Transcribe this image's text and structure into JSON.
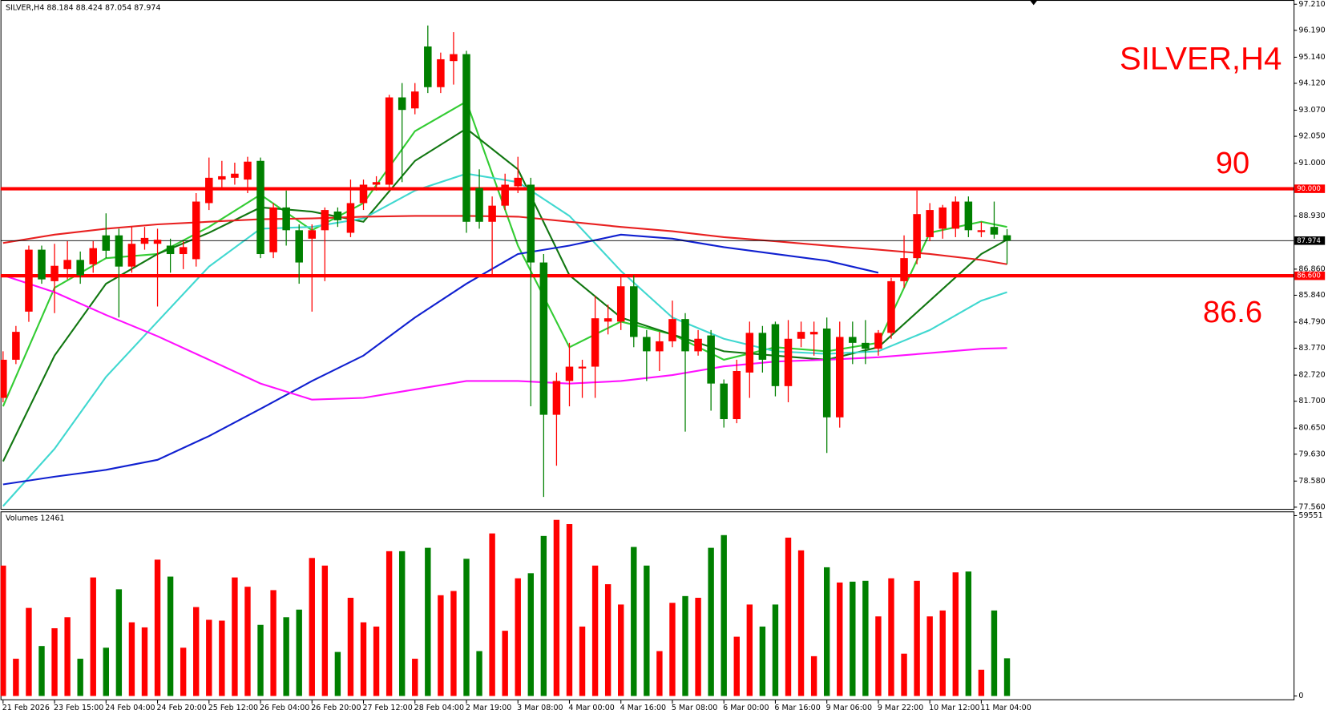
{
  "chart_data": [
    {
      "type": "candlestick",
      "symbol": "SILVER,H4",
      "watermark": "SILVER,H4",
      "up_color": "#ff0000",
      "down_color": "#008000",
      "categories": [
        "21 Feb 2026",
        null,
        null,
        null,
        "23 Feb 15:00",
        null,
        null,
        null,
        "24 Feb 04:00",
        null,
        null,
        null,
        "24 Feb 20:00",
        null,
        null,
        null,
        "25 Feb 12:00",
        null,
        null,
        null,
        "26 Feb 04:00",
        null,
        null,
        null,
        "26 Feb 20:00",
        null,
        null,
        null,
        "27 Feb 12:00",
        null,
        null,
        null,
        "28 Feb 04:00",
        null,
        null,
        null,
        "2 Mar 19:00",
        null,
        null,
        null,
        "3 Mar 08:00",
        null,
        null,
        null,
        "4 Mar 00:00",
        null,
        null,
        null,
        "4 Mar 16:00",
        null,
        null,
        null,
        "5 Mar 08:00",
        null,
        null,
        null,
        "6 Mar 00:00",
        null,
        null,
        null,
        "6 Mar 16:00",
        null,
        null,
        null,
        "9 Mar 06:00",
        null,
        null,
        null,
        "9 Mar 22:00",
        null,
        null,
        null,
        "10 Mar 12:00",
        null,
        null,
        null,
        "11 Mar 04:00",
        null,
        null
      ],
      "open": [
        81.83,
        83.32,
        85.2,
        87.62,
        86.39,
        86.86,
        87.22,
        87.05,
        88.18,
        88.18,
        86.96,
        87.85,
        87.85,
        87.78,
        87.45,
        87.25,
        89.44,
        90.36,
        90.43,
        90.36,
        91.09,
        87.52,
        89.27,
        88.38,
        88.05,
        88.38,
        89.11,
        88.28,
        89.44,
        90.16,
        90.16,
        93.57,
        93.14,
        95.56,
        93.97,
        94.99,
        95.26,
        90.03,
        88.71,
        89.34,
        90.1,
        90.16,
        87.12,
        81.17,
        82.49,
        82.98,
        83.05,
        84.81,
        84.81,
        86.19,
        84.21,
        83.65,
        84.04,
        84.91,
        83.65,
        84.27,
        82.39,
        81.0,
        82.82,
        84.37,
        84.71,
        82.29,
        84.14,
        84.31,
        84.54,
        81.07,
        84.21,
        83.98,
        83.75,
        84.37,
        86.39,
        87.29,
        88.11,
        88.44,
        88.44,
        89.5,
        88.31,
        88.51,
        88.184
      ],
      "high": [
        83.65,
        84.64,
        87.78,
        87.78,
        87.85,
        87.95,
        87.55,
        87.95,
        89.04,
        88.44,
        88.51,
        88.51,
        88.44,
        88.05,
        87.95,
        89.83,
        91.22,
        91.09,
        91.02,
        91.25,
        91.22,
        89.44,
        89.93,
        88.61,
        88.61,
        89.27,
        89.27,
        90.36,
        90.36,
        90.49,
        93.67,
        94.13,
        94.13,
        96.38,
        95.32,
        96.12,
        95.39,
        90.76,
        89.7,
        90.59,
        91.25,
        90.43,
        87.45,
        82.82,
        83.98,
        83.32,
        85.8,
        85.47,
        86.62,
        86.62,
        84.48,
        84.41,
        85.63,
        85.14,
        84.48,
        84.48,
        82.55,
        83.32,
        84.81,
        84.64,
        84.81,
        84.87,
        84.81,
        84.81,
        84.97,
        84.81,
        84.81,
        84.87,
        84.48,
        86.52,
        88.18,
        89.93,
        89.44,
        89.37,
        89.7,
        89.7,
        88.71,
        89.5,
        88.424
      ],
      "low": [
        81.66,
        83.15,
        84.8,
        86.29,
        85.14,
        86.46,
        86.29,
        86.72,
        87.29,
        84.97,
        86.72,
        87.62,
        85.4,
        86.72,
        86.86,
        86.96,
        89.17,
        90.03,
        90.16,
        89.83,
        87.29,
        87.29,
        87.78,
        86.29,
        85.2,
        86.39,
        88.51,
        88.11,
        89.17,
        89.93,
        89.93,
        90.26,
        92.91,
        93.74,
        93.74,
        94.07,
        88.28,
        88.44,
        86.62,
        89.17,
        89.83,
        81.5,
        77.96,
        79.18,
        81.5,
        81.83,
        81.83,
        84.31,
        84.48,
        83.81,
        82.49,
        82.88,
        83.81,
        80.51,
        83.48,
        81.33,
        80.67,
        80.84,
        81.83,
        82.82,
        81.89,
        81.66,
        83.81,
        83.48,
        79.68,
        80.67,
        83.15,
        83.15,
        83.48,
        84.14,
        86.13,
        87.05,
        87.95,
        88.05,
        88.11,
        88.11,
        88.11,
        88.05,
        87.054
      ],
      "close": [
        83.32,
        84.41,
        87.62,
        86.46,
        86.99,
        87.22,
        86.62,
        87.68,
        87.58,
        86.96,
        87.85,
        88.08,
        88.01,
        87.45,
        87.72,
        89.5,
        90.43,
        90.49,
        90.59,
        91.06,
        87.45,
        89.27,
        88.38,
        87.12,
        88.38,
        89.17,
        88.77,
        89.44,
        90.16,
        90.26,
        93.57,
        93.08,
        93.8,
        93.97,
        95.06,
        95.26,
        88.71,
        88.71,
        89.34,
        90.16,
        90.43,
        87.12,
        81.17,
        82.49,
        83.05,
        83.05,
        84.94,
        84.94,
        86.19,
        84.21,
        83.65,
        84.04,
        84.91,
        83.65,
        84.14,
        82.39,
        81.0,
        82.88,
        84.37,
        83.32,
        82.29,
        84.14,
        84.41,
        84.41,
        81.07,
        84.21,
        83.98,
        83.75,
        84.37,
        86.39,
        87.29,
        89.01,
        89.17,
        89.27,
        89.5,
        88.38,
        88.38,
        88.21,
        87.974
      ],
      "series": [
        {
          "color": "#33cc33",
          "x": [
            0,
            4,
            8,
            12,
            16,
            20,
            24,
            28,
            32,
            36,
            40,
            44,
            48,
            52,
            56,
            60,
            64,
            68,
            72,
            76,
            78
          ],
          "values": [
            81.5,
            86.13,
            87.29,
            87.45,
            88.51,
            89.77,
            88.38,
            89.44,
            92.25,
            93.41,
            87.78,
            83.81,
            84.81,
            84.31,
            83.32,
            83.81,
            83.65,
            83.98,
            88.28,
            88.71,
            88.51
          ]
        },
        {
          "color": "#117711",
          "x": [
            0,
            4,
            8,
            12,
            16,
            20,
            24,
            28,
            32,
            36,
            40,
            44,
            48,
            52,
            56,
            60,
            64,
            68,
            72,
            76,
            78
          ],
          "values": [
            79.35,
            83.48,
            86.29,
            87.45,
            88.28,
            89.27,
            89.11,
            88.71,
            91.09,
            92.35,
            90.76,
            86.62,
            84.97,
            84.31,
            83.65,
            83.48,
            83.32,
            83.81,
            85.63,
            87.45,
            88.01
          ]
        },
        {
          "color": "#40d8d0",
          "x": [
            0,
            4,
            8,
            12,
            16,
            20,
            24,
            28,
            32,
            36,
            40,
            44,
            48,
            52,
            56,
            60,
            64,
            68,
            72,
            76,
            78
          ],
          "values": [
            77.6,
            79.84,
            82.65,
            84.81,
            86.96,
            88.44,
            88.51,
            88.84,
            89.93,
            90.59,
            90.26,
            88.94,
            86.79,
            84.97,
            84.14,
            83.65,
            83.55,
            83.65,
            84.48,
            85.63,
            85.96
          ]
        },
        {
          "color": "#e82020",
          "x": [
            0,
            4,
            8,
            12,
            16,
            20,
            24,
            28,
            32,
            36,
            40,
            44,
            48,
            52,
            56,
            60,
            64,
            68,
            72,
            76,
            78
          ],
          "values": [
            87.88,
            88.21,
            88.44,
            88.61,
            88.71,
            88.81,
            88.84,
            88.91,
            88.94,
            88.94,
            88.91,
            88.71,
            88.51,
            88.34,
            88.11,
            87.95,
            87.78,
            87.62,
            87.45,
            87.22,
            87.05
          ]
        },
        {
          "color": "#1020d0",
          "x": [
            0,
            4,
            8,
            12,
            16,
            20,
            24,
            28,
            32,
            36,
            40,
            44,
            48,
            52,
            56,
            60,
            64,
            68,
            72,
            76,
            78
          ],
          "values": [
            78.45,
            78.75,
            79.02,
            79.41,
            80.34,
            81.4,
            82.49,
            83.48,
            84.97,
            86.29,
            87.45,
            87.78,
            88.21,
            88.05,
            87.72,
            87.45,
            87.19,
            86.72,
            null,
            null,
            null
          ]
        },
        {
          "color": "#ff10ff",
          "x": [
            0,
            4,
            8,
            12,
            16,
            20,
            24,
            28,
            32,
            36,
            40,
            44,
            48,
            52,
            56,
            60,
            64,
            68,
            72,
            76,
            78
          ],
          "values": [
            86.62,
            85.96,
            85.07,
            84.24,
            83.32,
            82.39,
            81.76,
            81.83,
            82.16,
            82.49,
            82.49,
            82.39,
            82.49,
            82.72,
            83.06,
            83.25,
            83.32,
            83.42,
            83.58,
            83.75,
            83.78
          ]
        }
      ],
      "levels": [
        {
          "value": 90,
          "label": "90.000",
          "annotation": "90",
          "color": "#ff0000"
        },
        {
          "value": 86.6,
          "label": "86.600",
          "annotation": "86.6",
          "color": "#ff0000"
        }
      ],
      "current_price": {
        "value": 87.974,
        "label": "87.974"
      },
      "ylim": [
        77.56,
        97.21
      ],
      "yticks": [
        {
          "value": 97.21,
          "label": "97.210"
        },
        {
          "value": 96.19,
          "label": "96.190"
        },
        {
          "value": 95.14,
          "label": "95.140"
        },
        {
          "value": 94.12,
          "label": "94.120"
        },
        {
          "value": 93.07,
          "label": "93.070"
        },
        {
          "value": 92.05,
          "label": "92.050"
        },
        {
          "value": 91,
          "label": "91.000"
        },
        {
          "value": 88.93,
          "label": "88.930"
        },
        {
          "value": 86.86,
          "label": "86.860"
        },
        {
          "value": 85.84,
          "label": "85.840"
        },
        {
          "value": 84.79,
          "label": "84.790"
        },
        {
          "value": 83.77,
          "label": "83.770"
        },
        {
          "value": 82.72,
          "label": "82.720"
        },
        {
          "value": 81.7,
          "label": "81.700"
        },
        {
          "value": 80.65,
          "label": "80.650"
        },
        {
          "value": 79.63,
          "label": "79.630"
        },
        {
          "value": 78.58,
          "label": "78.580"
        },
        {
          "value": 77.56,
          "label": "77.560"
        }
      ],
      "grid": false
    },
    {
      "type": "bar",
      "label": "Volumes",
      "values": [
        43060,
        12300,
        29080,
        16500,
        22370,
        26000,
        12300,
        39140,
        15940,
        35230,
        24330,
        22650,
        45020,
        39420,
        15940,
        29360,
        25160,
        24880,
        39140,
        36070,
        23490,
        34950,
        26000,
        28520,
        45570,
        43060,
        14540,
        32430,
        24330,
        22930,
        47810,
        47810,
        12300,
        48930,
        33270,
        34670,
        45300,
        14820,
        53680,
        21530,
        38860,
        40540,
        52840,
        58160,
        56760,
        22930,
        43060,
        36910,
        30200,
        49210,
        43060,
        14820,
        30760,
        32990,
        32430,
        48930,
        53120,
        19570,
        30200,
        22930,
        30200,
        52290,
        48090,
        13140,
        42500,
        37470,
        37750,
        38030,
        26280,
        38860,
        13980,
        38030,
        26280,
        28240,
        40820,
        41100,
        8670,
        28240,
        12461
      ],
      "ylim": [
        0,
        59551
      ],
      "yticks": [
        0,
        59551
      ],
      "grid": false
    }
  ]
}
